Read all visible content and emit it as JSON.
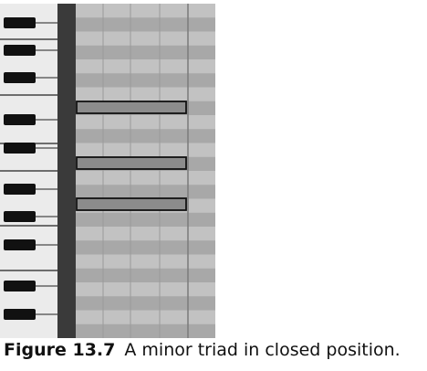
{
  "piano_roll": {
    "keyboard": {
      "white_key_color": "#ebebeb",
      "black_key_color": "#111111",
      "divider_color": "#3a3a3a"
    },
    "grid": {
      "light_row_color": "#c2c2c2",
      "dark_row_color": "#a8a8a8",
      "beat_line_color": "#9a9a9a",
      "bar_line_color": "#7a7a7a"
    },
    "notes": [
      {
        "name": "minor-triad-top-note"
      },
      {
        "name": "minor-triad-middle-note"
      },
      {
        "name": "minor-triad-root-note"
      }
    ],
    "note_color": "#8c8c8c",
    "note_border_color": "#111111"
  },
  "caption": {
    "label": "Figure 13.7",
    "text": "A minor triad in closed position."
  }
}
